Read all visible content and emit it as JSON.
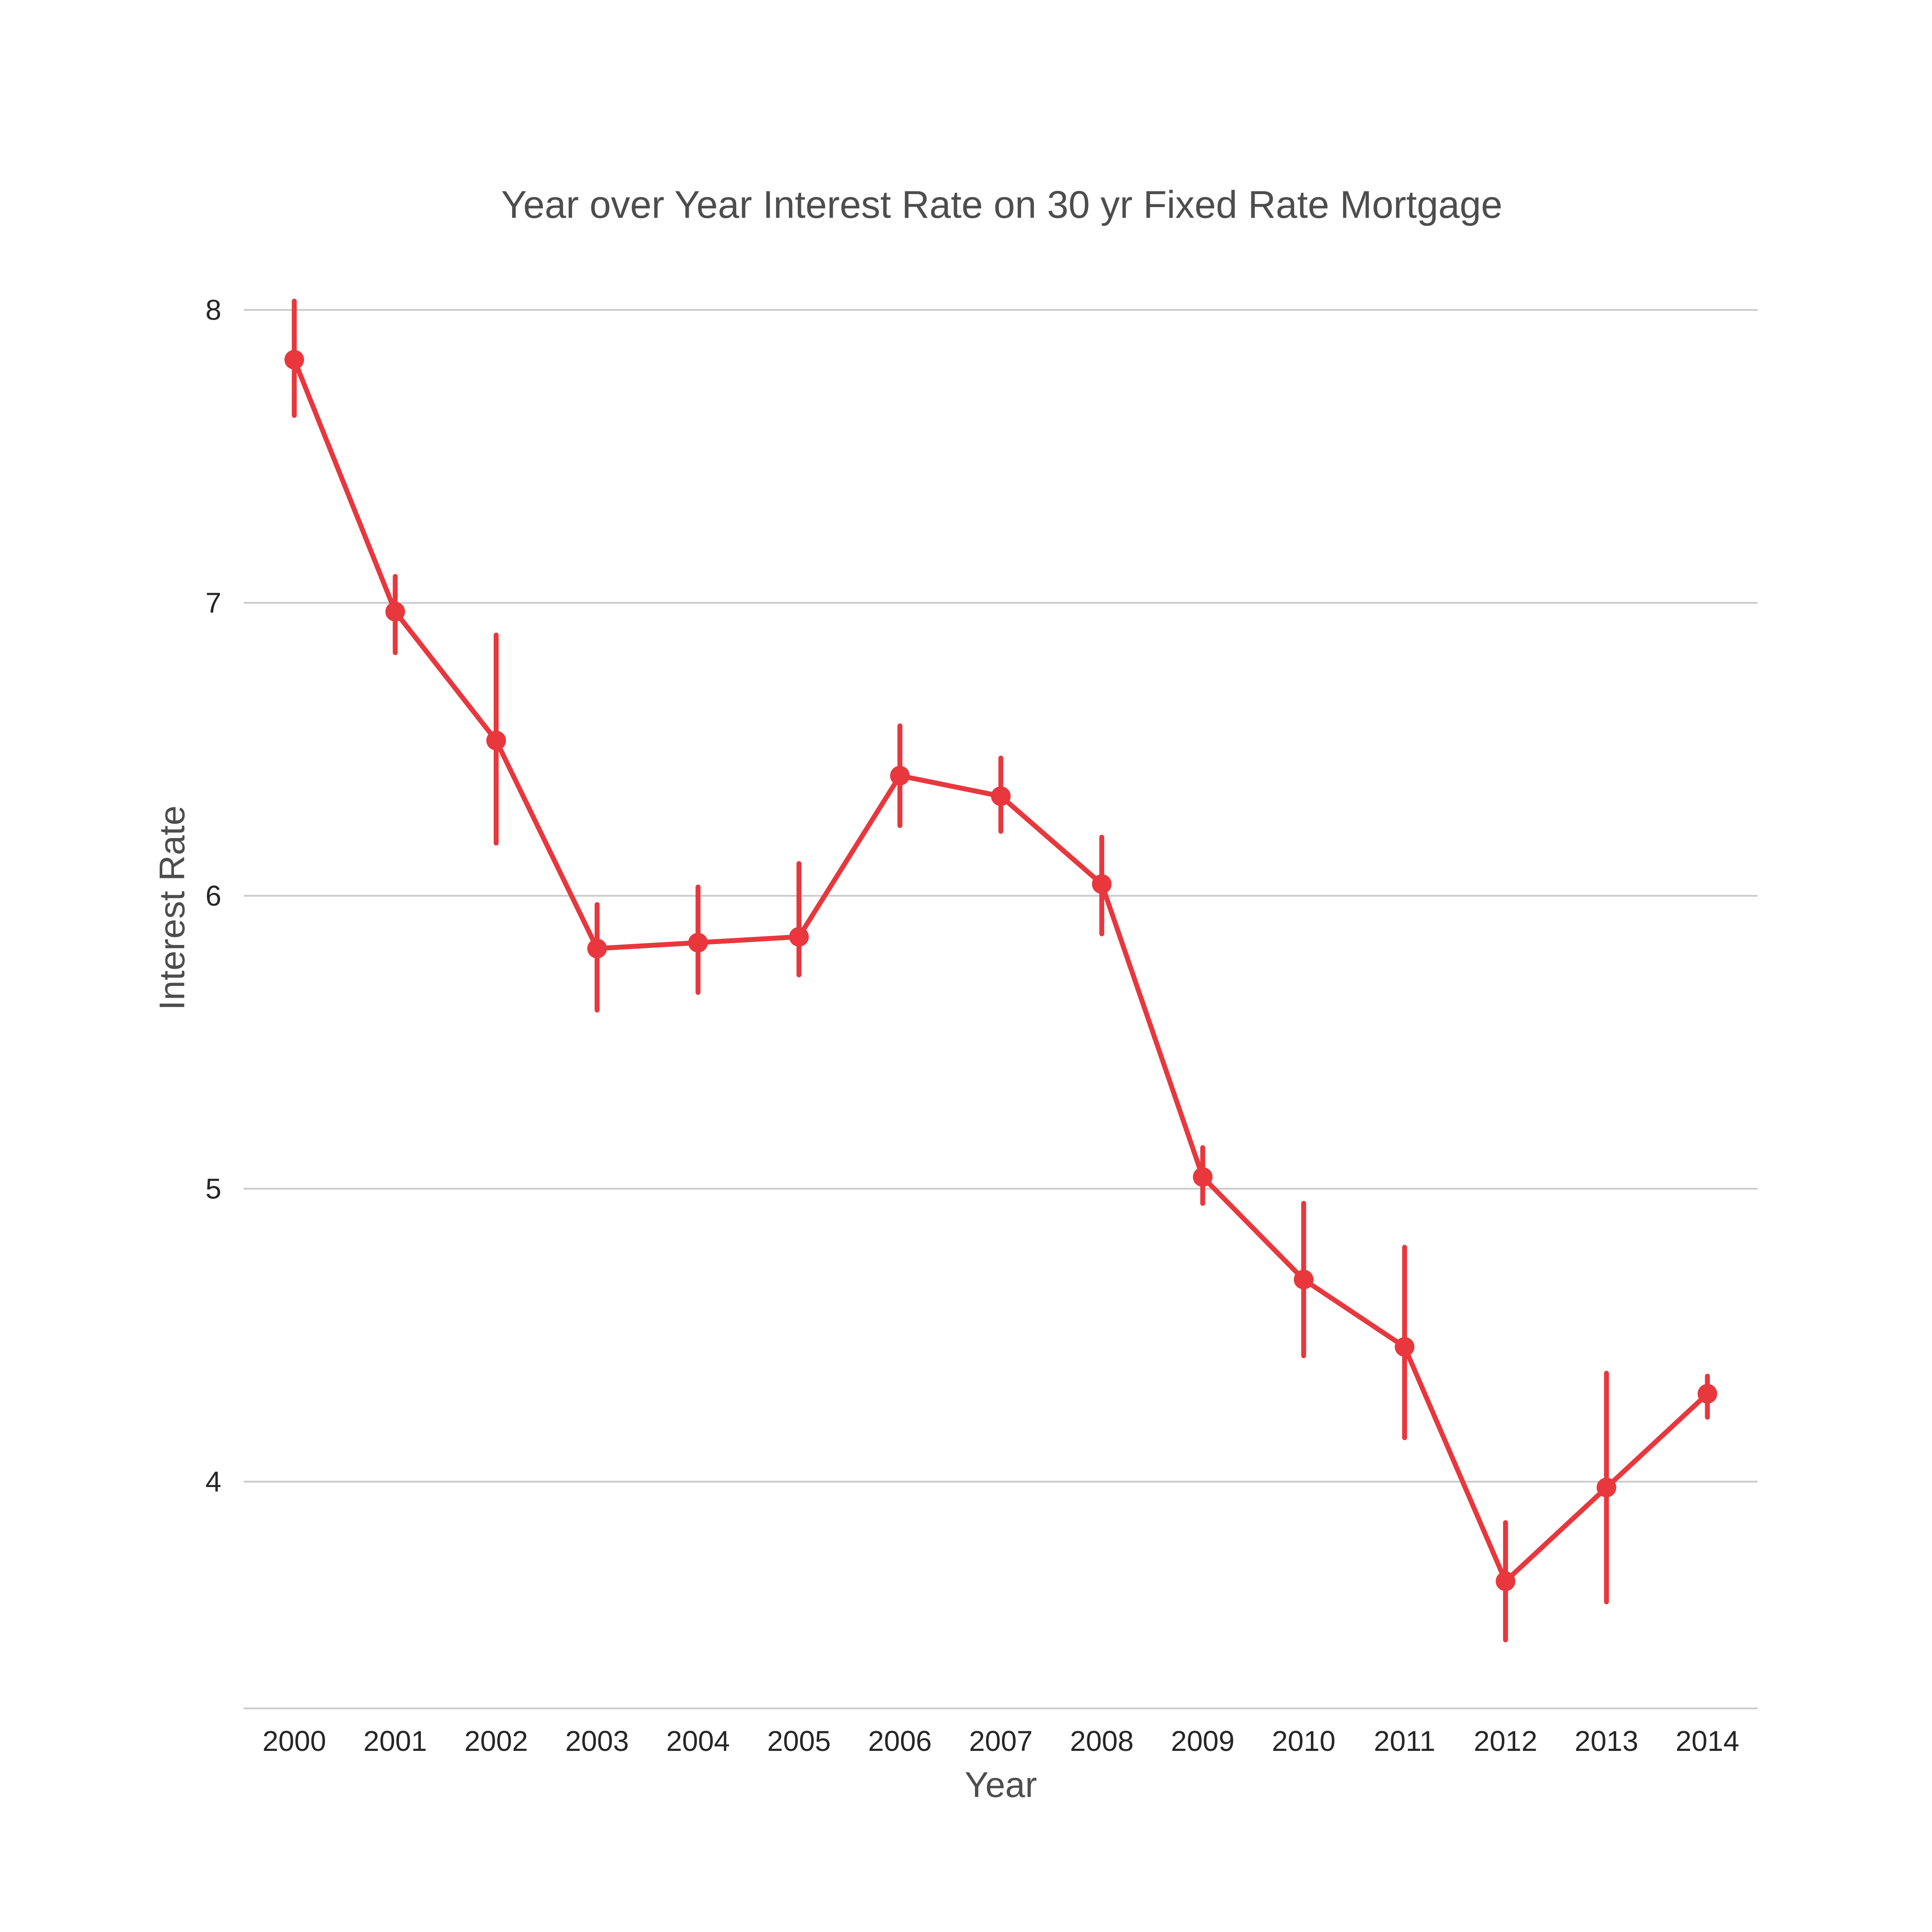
{
  "chart_data": {
    "type": "line",
    "title": "Year over Year Interest Rate on 30 yr Fixed Rate Mortgage",
    "xlabel": "Year",
    "ylabel": "Interest Rate",
    "categories": [
      "2000",
      "2001",
      "2002",
      "2003",
      "2004",
      "2005",
      "2006",
      "2007",
      "2008",
      "2009",
      "2010",
      "2011",
      "2012",
      "2013",
      "2014"
    ],
    "yticks": [
      "4",
      "5",
      "6",
      "7",
      "8"
    ],
    "ylim": [
      3.23,
      8.0
    ],
    "grid": true,
    "series": [
      {
        "values": [
          7.83,
          6.97,
          6.53,
          5.82,
          5.84,
          5.86,
          6.41,
          6.34,
          6.04,
          5.04,
          4.69,
          4.46,
          3.66,
          3.98,
          4.3
        ],
        "error_low": [
          7.64,
          6.83,
          6.18,
          5.61,
          5.67,
          5.73,
          6.24,
          6.22,
          5.87,
          4.95,
          4.43,
          4.15,
          3.46,
          3.59,
          4.22
        ],
        "error_high": [
          8.03,
          7.09,
          6.89,
          5.97,
          6.03,
          6.11,
          6.58,
          6.47,
          6.2,
          5.14,
          4.95,
          4.8,
          3.86,
          4.37,
          4.36
        ]
      }
    ],
    "colors": {
      "series": "#e8373d",
      "grid": "#cccccc",
      "title": "#4d4d4d",
      "ticks": "#262626"
    }
  }
}
